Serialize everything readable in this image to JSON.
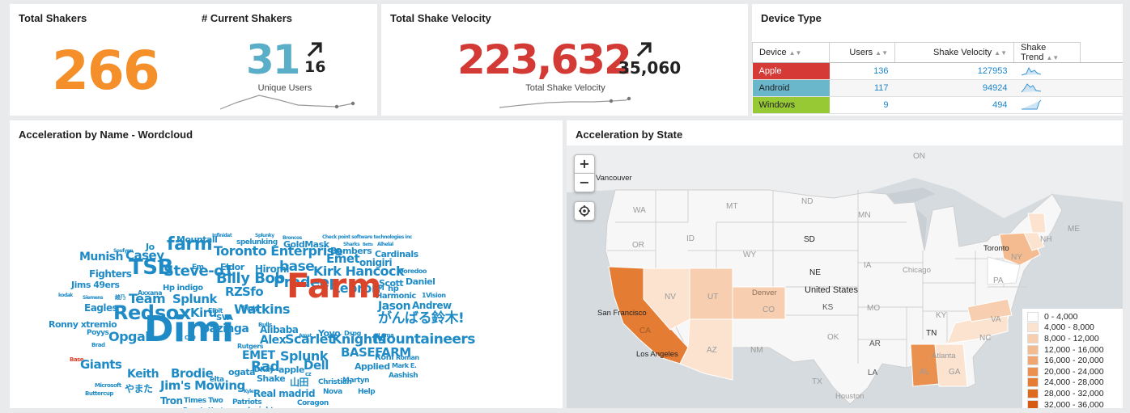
{
  "total_shakers": {
    "title": "Total Shakers",
    "value": "266",
    "color": "#f48f2a"
  },
  "current_shakers": {
    "title": "# Current Shakers",
    "value": "31",
    "delta": "16",
    "sublabel": "Unique Users",
    "color": "#5aaec7"
  },
  "velocity": {
    "title": "Total Shake Velocity",
    "value": "223,632",
    "delta": "35,060",
    "sublabel": "Total Shake Velocity",
    "color": "#d33a36"
  },
  "device_type": {
    "title": "Device Type",
    "columns": [
      "Device",
      "Users",
      "Shake Velocity",
      "Shake Trend"
    ],
    "rows": [
      {
        "device": "Apple",
        "users": "136",
        "velocity": "127953",
        "color": "#d63a37",
        "trend_icon": "sparkline-icon"
      },
      {
        "device": "Android",
        "users": "117",
        "velocity": "94924",
        "color": "#6ab7cc",
        "trend_icon": "sparkline-icon"
      },
      {
        "device": "Windows",
        "users": "9",
        "velocity": "494",
        "color": "#97c935",
        "trend_icon": "sparkline-icon"
      }
    ]
  },
  "wordcloud": {
    "title": "Acceleration by Name - Wordcloud",
    "words": [
      "Infinidat",
      "Splunky",
      "Broncos",
      "Check point software technologies inc",
      "Mountall",
      "spelunking",
      "GoldMask",
      "Sharks",
      "Betts",
      "Alhelal",
      "Soufyen",
      "Jo",
      "farm",
      "Bombers",
      "Cardinals",
      "Munish",
      "Casey",
      "Toronto Enterprise",
      "Emet",
      "onigiri",
      "Fighters",
      "Em",
      "Eldor",
      "Hiromi",
      "Ooredoo",
      "Jims 49ers",
      "TSB",
      "Steve-o1",
      "base",
      "Kirk Hancock",
      "Scott",
      "Daniel",
      "kodak",
      "Axxana",
      "Hp indigo",
      "Billy Bob",
      "JM",
      "hp",
      "Siemens",
      "綾乃",
      "RZ",
      "Sfo",
      "Pradeep",
      "Lebron",
      "Harmonic",
      "1Vision",
      "Eagles",
      "Team",
      "Splunk",
      "Elbit",
      "Bigly",
      "Jason",
      "Andrew",
      "Farm",
      "Kiru",
      "SVA",
      "Watkins",
      "Red",
      "sox",
      "Ronny xtremio",
      "Bulls",
      "がんばる鈴木!",
      "bazinga",
      "Alibaba",
      "Poyys",
      "Opgal",
      "C30",
      "Amat",
      "Yoyo",
      "Dspg",
      "Lama",
      "Brad",
      "Alex",
      "Rutgers",
      "Scarlet",
      "Knights",
      "Mountaineers",
      "Base",
      "Dimi",
      "EMET",
      "BASEFARM",
      "Roni",
      "Roman",
      "Giants",
      "Splunk",
      "Applied",
      "Mark E.",
      "ogata",
      "DKay",
      "apple",
      "Aashish",
      "Microsoft",
      "Keith",
      "Brodie",
      "elta",
      "Shake",
      "山田",
      "Christian",
      "Martyn",
      "Buttercup",
      "やまた",
      "Jim's Mowing",
      "Kyle",
      "Nova",
      "Help",
      "Real madrid",
      "Tron",
      "Times Two",
      "Patriots",
      "Coragon",
      "Donnie Hester",
      "Insightec",
      "Rad",
      "Dell",
      "cz"
    ]
  },
  "map": {
    "title": "Acceleration by State",
    "zoom_in": "+",
    "zoom_out": "−",
    "state_labels": [
      "ON",
      "WA",
      "MT",
      "ND",
      "MN",
      "OR",
      "ID",
      "SD",
      "WY",
      "NE",
      "IA",
      "NV",
      "UT",
      "CO",
      "KS",
      "MO",
      "CA",
      "AZ",
      "NM",
      "OK",
      "AR",
      "TX",
      "LA",
      "AL",
      "GA",
      "TN",
      "KY",
      "VA",
      "NC",
      "PA",
      "NY",
      "NH",
      "ME"
    ],
    "city_labels": [
      "Vancouver",
      "Toronto",
      "Chicago",
      "United States",
      "Denver",
      "San Francisco",
      "Los Angeles",
      "Atlanta",
      "Houston"
    ],
    "legend": [
      "0 - 4,000",
      "4,000 - 8,000",
      "8,000 - 12,000",
      "12,000 - 16,000",
      "16,000 - 20,000",
      "20,000 - 24,000",
      "24,000 - 28,000",
      "28,000 - 32,000",
      "32,000 - 36,000"
    ],
    "legend_colors": [
      "#ffffff",
      "#fbe3d0",
      "#f7cfb0",
      "#f4bb90",
      "#efa670",
      "#ea9150",
      "#e57c33",
      "#dd6a1e",
      "#d65a10"
    ]
  }
}
